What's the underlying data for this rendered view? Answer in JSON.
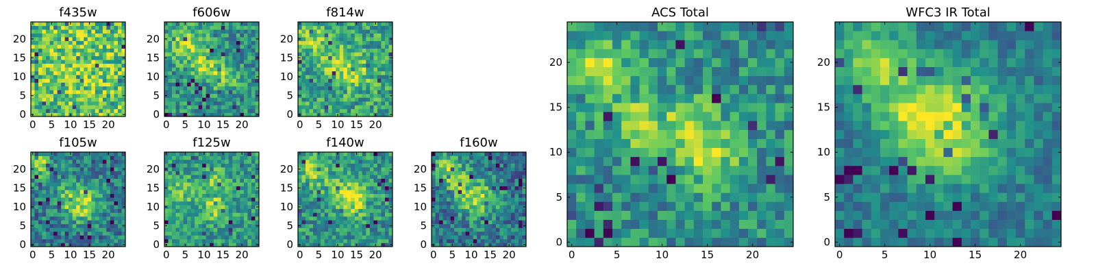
{
  "figure": {
    "description_panels": 9
  },
  "colormap": {
    "name": "viridis",
    "stops": [
      "#440154",
      "#3b528b",
      "#21918c",
      "#5ec962",
      "#fde725"
    ]
  },
  "chart_data": [
    {
      "type": "heatmap",
      "title": "f435w",
      "grid_size": 25,
      "xlim": [
        0,
        24
      ],
      "ylim": [
        0,
        24
      ],
      "xticks": [
        "0",
        "5",
        "10",
        "15",
        "20"
      ],
      "yticks": [
        "0",
        "5",
        "10",
        "15",
        "20"
      ],
      "intensity": "noisy, high background"
    },
    {
      "type": "heatmap",
      "title": "f606w",
      "grid_size": 25,
      "xlim": [
        0,
        24
      ],
      "ylim": [
        0,
        24
      ],
      "xticks": [
        "0",
        "5",
        "10",
        "15",
        "20"
      ],
      "yticks": [
        "0",
        "5",
        "10",
        "15",
        "20"
      ],
      "intensity": "diagonal bright band"
    },
    {
      "type": "heatmap",
      "title": "f814w",
      "grid_size": 25,
      "xlim": [
        0,
        24
      ],
      "ylim": [
        0,
        24
      ],
      "xticks": [
        "0",
        "5",
        "10",
        "15",
        "20"
      ],
      "yticks": [
        "0",
        "5",
        "10",
        "15",
        "20"
      ],
      "intensity": "noisy, diagonal band"
    },
    {
      "type": "heatmap",
      "title": "f105w",
      "grid_size": 25,
      "xlim": [
        0,
        24
      ],
      "ylim": [
        0,
        24
      ],
      "xticks": [
        "0",
        "5",
        "10",
        "15",
        "20"
      ],
      "yticks": [
        "0",
        "5",
        "10",
        "15",
        "20"
      ],
      "intensity": "peaks near (13,11) and (2,21)"
    },
    {
      "type": "heatmap",
      "title": "f125w",
      "grid_size": 25,
      "xlim": [
        0,
        24
      ],
      "ylim": [
        0,
        24
      ],
      "xticks": [
        "0",
        "5",
        "10",
        "15",
        "20"
      ],
      "yticks": [
        "0",
        "5",
        "10",
        "15",
        "20"
      ],
      "intensity": "vertical bright ridge near x=13"
    },
    {
      "type": "heatmap",
      "title": "f140w",
      "grid_size": 25,
      "xlim": [
        0,
        24
      ],
      "ylim": [
        0,
        24
      ],
      "xticks": [
        "0",
        "5",
        "10",
        "15",
        "20"
      ],
      "yticks": [
        "0",
        "5",
        "10",
        "15",
        "20"
      ],
      "intensity": "peak near (14,12)"
    },
    {
      "type": "heatmap",
      "title": "f160w",
      "grid_size": 25,
      "xlim": [
        0,
        24
      ],
      "ylim": [
        0,
        24
      ],
      "xticks": [
        "0",
        "5",
        "10",
        "15",
        "20"
      ],
      "yticks": [
        "0",
        "5",
        "10",
        "15",
        "20"
      ],
      "intensity": "peaks near (4,20) and (12,12)"
    },
    {
      "type": "heatmap",
      "title": "ACS Total",
      "grid_size": 25,
      "xlim": [
        0,
        24
      ],
      "ylim": [
        0,
        24
      ],
      "xticks": [
        "0",
        "5",
        "10",
        "15",
        "20"
      ],
      "yticks": [
        "0",
        "5",
        "10",
        "15",
        "20"
      ],
      "intensity": "peaks near (3,19), (8,13) and (15,10)"
    },
    {
      "type": "heatmap",
      "title": "WFC3 IR Total",
      "grid_size": 25,
      "xlim": [
        0,
        24
      ],
      "ylim": [
        0,
        24
      ],
      "xticks": [
        "0",
        "5",
        "10",
        "15",
        "20"
      ],
      "yticks": [
        "0",
        "5",
        "10",
        "15",
        "20"
      ],
      "intensity": "broad peak near (12,13), secondary near (4,20)"
    }
  ]
}
